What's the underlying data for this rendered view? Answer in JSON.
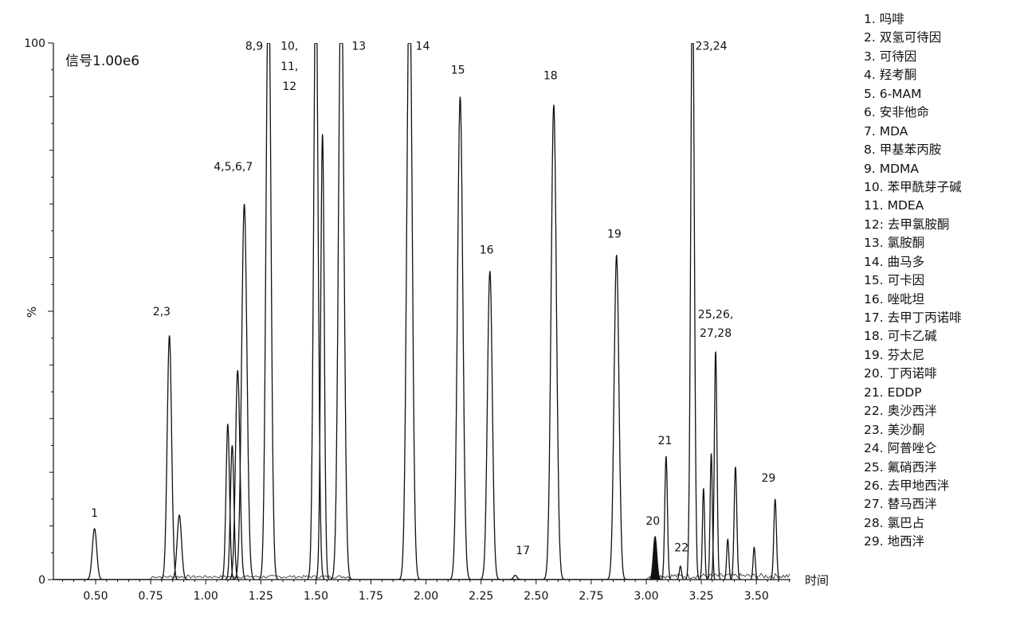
{
  "chart_data": {
    "type": "line",
    "signal_label": "信号1.00e6",
    "ylabel": "%",
    "xlabel": "时间",
    "xlim": [
      0.3,
      3.67
    ],
    "ylim": [
      0,
      100
    ],
    "x_ticks": [
      "0.50",
      "0.75",
      "1.00",
      "1.25",
      "1.50",
      "1.75",
      "2.00",
      "2.25",
      "2.50",
      "2.75",
      "3.00",
      "3.25",
      "3.50"
    ],
    "y_ticks": [
      "0",
      "100"
    ],
    "peaks": [
      {
        "t": 0.495,
        "h": 9.5,
        "w": 0.01
      },
      {
        "t": 0.835,
        "h": 45.5,
        "w": 0.01
      },
      {
        "t": 0.88,
        "h": 12,
        "w": 0.01
      },
      {
        "t": 1.1,
        "h": 29,
        "w": 0.008
      },
      {
        "t": 1.12,
        "h": 25,
        "w": 0.008
      },
      {
        "t": 1.145,
        "h": 39,
        "w": 0.01
      },
      {
        "t": 1.175,
        "h": 70,
        "w": 0.012
      },
      {
        "t": 1.285,
        "h": 100,
        "w": 0.011
      },
      {
        "t": 1.5,
        "h": 100,
        "w": 0.01
      },
      {
        "t": 1.53,
        "h": 83,
        "w": 0.008
      },
      {
        "t": 1.615,
        "h": 100,
        "w": 0.012
      },
      {
        "t": 1.925,
        "h": 100,
        "w": 0.012
      },
      {
        "t": 2.155,
        "h": 90,
        "w": 0.012
      },
      {
        "t": 2.29,
        "h": 57.5,
        "w": 0.011
      },
      {
        "t": 2.405,
        "h": 0.8,
        "w": 0.008
      },
      {
        "t": 2.58,
        "h": 88.5,
        "w": 0.012
      },
      {
        "t": 2.865,
        "h": 60.5,
        "w": 0.011
      },
      {
        "t": 3.04,
        "h": 8,
        "w": 0.008
      },
      {
        "t": 3.09,
        "h": 23,
        "w": 0.006
      },
      {
        "t": 3.155,
        "h": 2.5,
        "w": 0.005
      },
      {
        "t": 3.21,
        "h": 100,
        "w": 0.008
      },
      {
        "t": 3.26,
        "h": 17,
        "w": 0.005
      },
      {
        "t": 3.295,
        "h": 23.5,
        "w": 0.005
      },
      {
        "t": 3.315,
        "h": 42.5,
        "w": 0.006
      },
      {
        "t": 3.37,
        "h": 7.5,
        "w": 0.005
      },
      {
        "t": 3.405,
        "h": 21,
        "w": 0.006
      },
      {
        "t": 3.49,
        "h": 6,
        "w": 0.005
      },
      {
        "t": 3.585,
        "h": 15,
        "w": 0.006
      }
    ],
    "annotations": [
      {
        "text": "1",
        "t": 0.495,
        "y": 12.5
      },
      {
        "text": "2,3",
        "t": 0.8,
        "y": 50
      },
      {
        "text": "4,5,6,7",
        "t": 1.125,
        "y": 77
      },
      {
        "text": "8,9",
        "t": 1.22,
        "y": 99.5
      },
      {
        "text": "10,",
        "t": 1.38,
        "y": 99.5
      },
      {
        "text": "11,",
        "t": 1.38,
        "y": 95.7
      },
      {
        "text": "12",
        "t": 1.38,
        "y": 92
      },
      {
        "text": "13",
        "t": 1.695,
        "y": 99.5
      },
      {
        "text": "14",
        "t": 1.985,
        "y": 99.5
      },
      {
        "text": "15",
        "t": 2.145,
        "y": 95
      },
      {
        "text": "16",
        "t": 2.275,
        "y": 61.5
      },
      {
        "text": "17",
        "t": 2.44,
        "y": 5.5
      },
      {
        "text": "18",
        "t": 2.565,
        "y": 94
      },
      {
        "text": "19",
        "t": 2.855,
        "y": 64.5
      },
      {
        "text": "20",
        "t": 3.03,
        "y": 11
      },
      {
        "text": "21",
        "t": 3.085,
        "y": 26
      },
      {
        "text": "22",
        "t": 3.16,
        "y": 6
      },
      {
        "text": "23,24",
        "t": 3.295,
        "y": 99.5
      },
      {
        "text": "25,26,",
        "t": 3.315,
        "y": 49.5
      },
      {
        "text": "27,28",
        "t": 3.315,
        "y": 46
      },
      {
        "text": "29",
        "t": 3.555,
        "y": 19
      }
    ]
  },
  "legend": [
    {
      "label": "1. 吗啡"
    },
    {
      "label": "2. 双氢可待因"
    },
    {
      "label": "3. 可待因"
    },
    {
      "label": "4. 羟考酮"
    },
    {
      "label": "5. 6-MAM"
    },
    {
      "label": "6. 安非他命"
    },
    {
      "label": "7. MDA"
    },
    {
      "label": "8. 甲基苯丙胺"
    },
    {
      "label": "9. MDMA"
    },
    {
      "label": "10. 苯甲酰芽子碱"
    },
    {
      "label": "11. MDEA"
    },
    {
      "label": "12: 去甲氯胺酮"
    },
    {
      "label": "13. 氯胺酮"
    },
    {
      "label": "14. 曲马多"
    },
    {
      "label": "15. 可卡因"
    },
    {
      "label": "16. 唑吡坦"
    },
    {
      "label": "17. 去甲丁丙诺啡"
    },
    {
      "label": "18. 可卡乙碱"
    },
    {
      "label": "19. 芬太尼"
    },
    {
      "label": "20. 丁丙诺啡"
    },
    {
      "label": "21. EDDP"
    },
    {
      "label": "22. 奥沙西泮"
    },
    {
      "label": "23. 美沙酮"
    },
    {
      "label": "24. 阿普唑仑"
    },
    {
      "label": "25. 氟硝西泮"
    },
    {
      "label": "26. 去甲地西泮"
    },
    {
      "label": "27. 替马西泮"
    },
    {
      "label": "28. 氯巴占"
    },
    {
      "label": "29. 地西泮"
    }
  ]
}
